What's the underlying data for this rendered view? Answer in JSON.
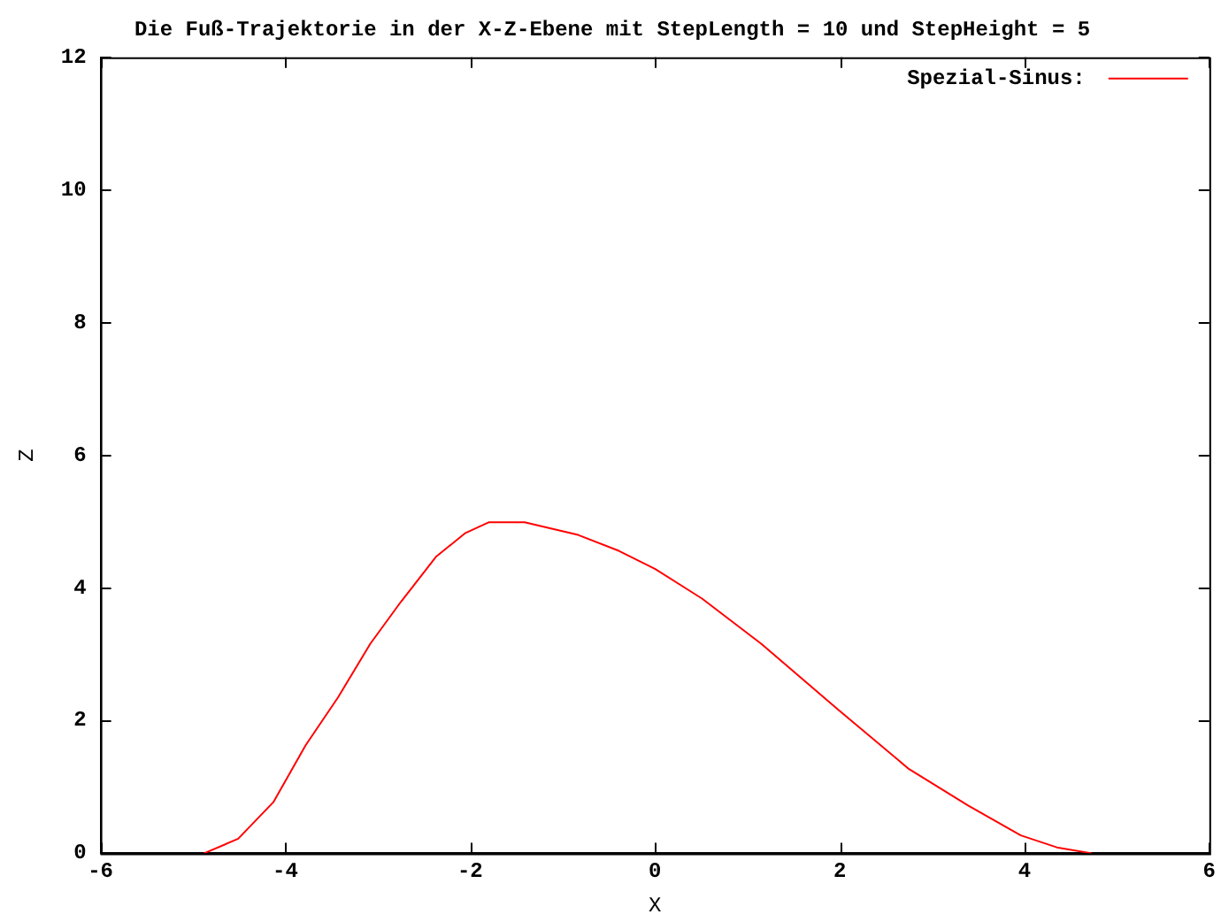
{
  "chart_data": {
    "type": "line",
    "title": "Die Fuß-Trajektorie in der X-Z-Ebene mit StepLength = 10 und StepHeight = 5",
    "xlabel": "X",
    "ylabel": "Z",
    "xlim": [
      -6,
      6
    ],
    "ylim": [
      0,
      12
    ],
    "xticks": [
      -6,
      -4,
      -2,
      0,
      2,
      4,
      6
    ],
    "yticks": [
      0,
      2,
      4,
      6,
      8,
      10,
      12
    ],
    "grid": false,
    "legend": "top right",
    "marker": "none",
    "line_style": "solid",
    "series": [
      {
        "name": "Spezial-Sinus:",
        "color": "#ff0000",
        "x": [
          -4.88,
          -4.51,
          -4.13,
          -3.78,
          -3.43,
          -3.08,
          -2.75,
          -2.37,
          -2.05,
          -1.8,
          -1.41,
          -0.83,
          -0.39,
          0,
          0.51,
          1.15,
          1.98,
          2.75,
          3.39,
          3.96,
          4.35,
          4.73
        ],
        "values": [
          0,
          0.22,
          0.77,
          1.63,
          2.35,
          3.16,
          3.79,
          4.47,
          4.83,
          4.99,
          4.99,
          4.8,
          4.56,
          4.29,
          3.84,
          3.16,
          2.17,
          1.27,
          0.72,
          0.27,
          0.09,
          0
        ]
      }
    ]
  }
}
